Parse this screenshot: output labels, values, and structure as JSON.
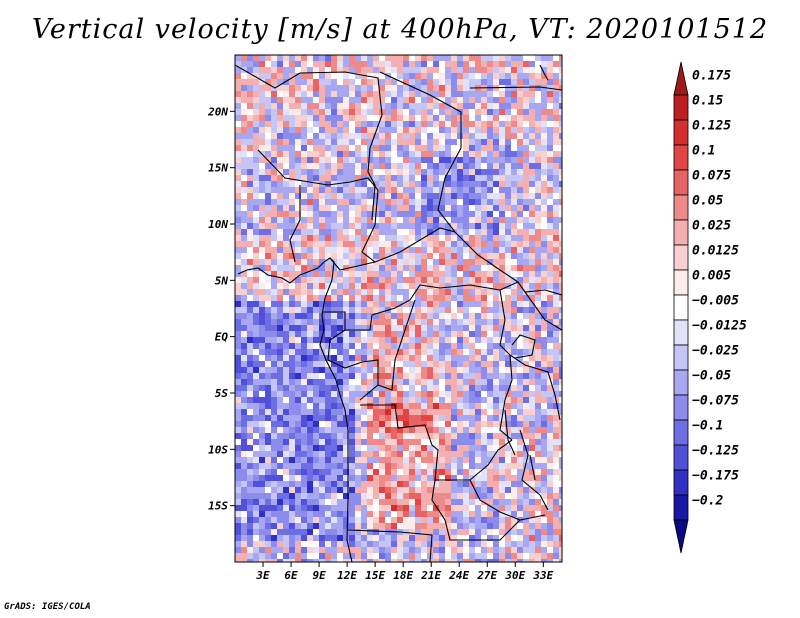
{
  "title": "Vertical velocity [m/s] at 400hPa, VT: 2020101512",
  "footer": "GrADS: IGES/COLA",
  "map": {
    "lon_range": [
      0,
      35
    ],
    "lat_range": [
      -20,
      25
    ],
    "lat_ticks": [
      {
        "value": 20,
        "label": "20N"
      },
      {
        "value": 15,
        "label": "15N"
      },
      {
        "value": 10,
        "label": "10N"
      },
      {
        "value": 5,
        "label": "5N"
      },
      {
        "value": 0,
        "label": "EQ"
      },
      {
        "value": -5,
        "label": "5S"
      },
      {
        "value": -10,
        "label": "10S"
      },
      {
        "value": -15,
        "label": "15S"
      }
    ],
    "lon_ticks": [
      {
        "value": 3,
        "label": "3E"
      },
      {
        "value": 6,
        "label": "6E"
      },
      {
        "value": 9,
        "label": "9E"
      },
      {
        "value": 12,
        "label": "12E"
      },
      {
        "value": 15,
        "label": "15E"
      },
      {
        "value": 18,
        "label": "18E"
      },
      {
        "value": 21,
        "label": "21E"
      },
      {
        "value": 24,
        "label": "24E"
      },
      {
        "value": 27,
        "label": "27E"
      },
      {
        "value": 30,
        "label": "30E"
      },
      {
        "value": 33,
        "label": "33E"
      }
    ]
  },
  "colorbar": {
    "levels": [
      "0.175",
      "0.15",
      "0.125",
      "0.1",
      "0.075",
      "0.05",
      "0.025",
      "0.0125",
      "0.005",
      "−0.005",
      "−0.0125",
      "−0.025",
      "−0.05",
      "−0.075",
      "−0.1",
      "−0.125",
      "−0.175",
      "−0.2"
    ],
    "colors": [
      "#a01818",
      "#bc2020",
      "#d23030",
      "#e04646",
      "#e86464",
      "#ee8a8a",
      "#f4b0b0",
      "#f8d0d0",
      "#fcecec",
      "#ffffff",
      "#e2e2fa",
      "#c6c6f6",
      "#a8a8f2",
      "#8c8cec",
      "#6e6ee4",
      "#5050d8",
      "#3030c4",
      "#1818a4",
      "#0a0a80"
    ]
  }
}
